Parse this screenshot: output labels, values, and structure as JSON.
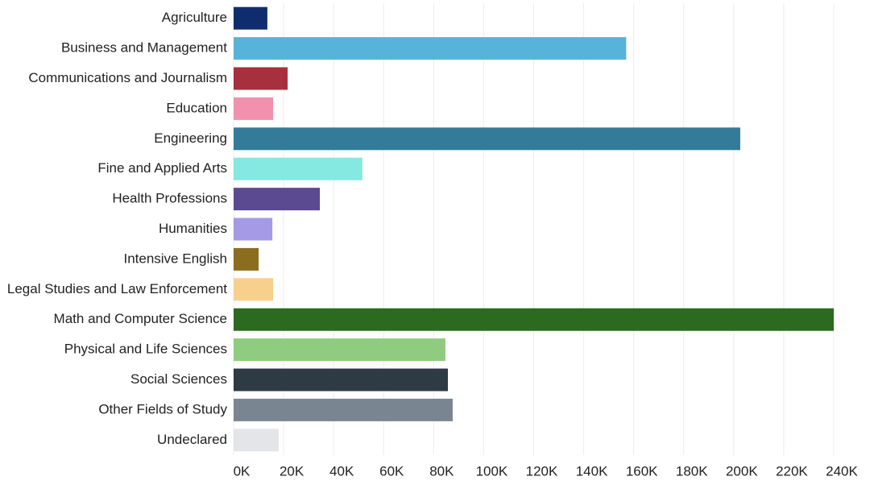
{
  "chart_data": {
    "type": "hbar",
    "categories": [
      "Agriculture",
      "Business and Management",
      "Communications and Journalism",
      "Education",
      "Engineering",
      "Fine and Applied Arts",
      "Health Professions",
      "Humanities",
      "Intensive English",
      "Legal Studies and Law Enforcement",
      "Math and Computer Science",
      "Physical and Life Sciences",
      "Social Sciences",
      "Other Fields of Study",
      "Undeclared"
    ],
    "values": [
      13500,
      157000,
      21600,
      15800,
      202600,
      51500,
      34500,
      15500,
      10000,
      15800,
      240000,
      84700,
      85700,
      87600,
      18000
    ],
    "colors": [
      "#0f2d6e",
      "#58b3db",
      "#a6303d",
      "#f291ad",
      "#337b99",
      "#85e8e1",
      "#5b4a91",
      "#a59ae6",
      "#8a6d1e",
      "#f8d08e",
      "#2b6a1f",
      "#8fcc80",
      "#2e3a44",
      "#798691",
      "#e3e5e8"
    ],
    "xlim": [
      0,
      240000
    ],
    "xticks": [
      {
        "value": 0,
        "label": "0K"
      },
      {
        "value": 20000,
        "label": "20K"
      },
      {
        "value": 40000,
        "label": "40K"
      },
      {
        "value": 60000,
        "label": "60K"
      },
      {
        "value": 80000,
        "label": "80K"
      },
      {
        "value": 100000,
        "label": "100K"
      },
      {
        "value": 120000,
        "label": "120K"
      },
      {
        "value": 140000,
        "label": "140K"
      },
      {
        "value": 160000,
        "label": "160K"
      },
      {
        "value": 180000,
        "label": "180K"
      },
      {
        "value": 200000,
        "label": "200K"
      },
      {
        "value": 220000,
        "label": "220K"
      },
      {
        "value": 240000,
        "label": "240K"
      }
    ],
    "grid": true
  }
}
